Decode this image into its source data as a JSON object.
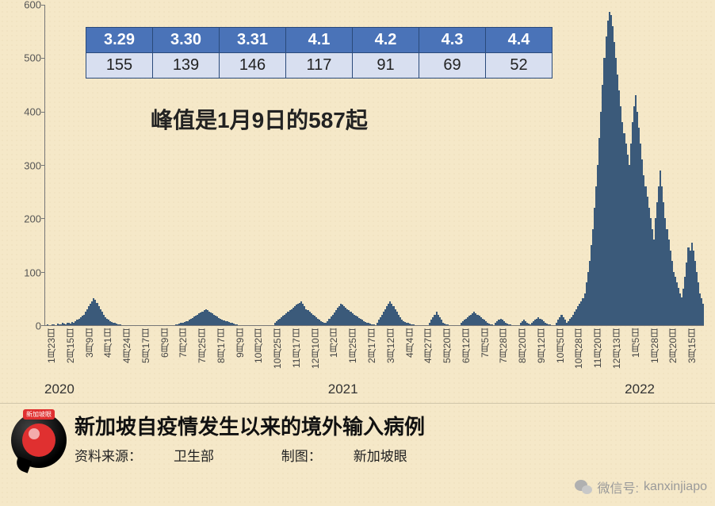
{
  "chart": {
    "type": "bar",
    "ylim": [
      0,
      600
    ],
    "yticks": [
      0,
      100,
      200,
      300,
      400,
      500,
      600
    ],
    "bar_color": "#3b5a7a",
    "axis_color": "#777777",
    "x_labels": [
      "1月23日",
      "2月15日",
      "3月9日",
      "4月1日",
      "4月24日",
      "5月17日",
      "6月9日",
      "7月2日",
      "7月25日",
      "8月17日",
      "9月9日",
      "10月2日",
      "10月25日",
      "11月17日",
      "12月10日",
      "1月2日",
      "1月25日",
      "2月17日",
      "3月12日",
      "4月4日",
      "4月27日",
      "5月20日",
      "6月12日",
      "7月5日",
      "7月28日",
      "8月20日",
      "9月12日",
      "10月5日",
      "10月28日",
      "11月20日",
      "12月13日",
      "1月5日",
      "1月28日",
      "2月20日",
      "3月15日"
    ],
    "year_markers": [
      {
        "label": "2020",
        "pos_pct": 0
      },
      {
        "label": "2021",
        "pos_pct": 43
      },
      {
        "label": "2022",
        "pos_pct": 88
      }
    ],
    "series": [
      0,
      1,
      0,
      0,
      2,
      1,
      0,
      3,
      2,
      1,
      4,
      3,
      2,
      5,
      4,
      3,
      6,
      5,
      8,
      10,
      12,
      15,
      18,
      20,
      25,
      30,
      35,
      40,
      45,
      50,
      48,
      42,
      35,
      30,
      25,
      20,
      15,
      12,
      10,
      8,
      6,
      5,
      4,
      3,
      2,
      1,
      0,
      0,
      0,
      0,
      0,
      0,
      0,
      0,
      0,
      0,
      0,
      0,
      0,
      0,
      0,
      0,
      0,
      0,
      0,
      0,
      0,
      0,
      0,
      0,
      0,
      0,
      0,
      0,
      0,
      0,
      0,
      0,
      0,
      1,
      2,
      3,
      4,
      5,
      6,
      7,
      8,
      10,
      12,
      14,
      16,
      18,
      20,
      22,
      24,
      26,
      28,
      30,
      28,
      26,
      24,
      22,
      20,
      18,
      16,
      14,
      12,
      10,
      9,
      8,
      7,
      6,
      5,
      4,
      3,
      2,
      1,
      0,
      0,
      0,
      0,
      0,
      0,
      0,
      0,
      0,
      0,
      0,
      0,
      0,
      0,
      0,
      0,
      0,
      0,
      0,
      0,
      0,
      0,
      5,
      8,
      10,
      12,
      15,
      18,
      20,
      22,
      25,
      28,
      30,
      32,
      35,
      38,
      40,
      42,
      45,
      40,
      35,
      30,
      28,
      25,
      22,
      20,
      18,
      15,
      12,
      10,
      8,
      6,
      5,
      4,
      8,
      12,
      16,
      20,
      24,
      28,
      32,
      36,
      40,
      38,
      35,
      32,
      30,
      28,
      25,
      22,
      20,
      18,
      16,
      14,
      12,
      10,
      8,
      6,
      5,
      4,
      3,
      2,
      1,
      0,
      5,
      10,
      15,
      20,
      25,
      30,
      35,
      40,
      45,
      40,
      35,
      30,
      25,
      20,
      15,
      10,
      8,
      6,
      5,
      4,
      3,
      2,
      1,
      0,
      0,
      0,
      0,
      0,
      0,
      0,
      0,
      0,
      5,
      10,
      15,
      20,
      25,
      20,
      15,
      10,
      5,
      3,
      2,
      1,
      0,
      0,
      0,
      0,
      0,
      0,
      0,
      5,
      8,
      10,
      12,
      15,
      18,
      20,
      22,
      25,
      22,
      20,
      18,
      15,
      12,
      10,
      8,
      5,
      3,
      2,
      1,
      0,
      5,
      8,
      10,
      12,
      10,
      8,
      5,
      3,
      2,
      1,
      0,
      0,
      0,
      0,
      0,
      5,
      8,
      10,
      8,
      5,
      3,
      2,
      5,
      8,
      10,
      12,
      15,
      12,
      10,
      8,
      5,
      3,
      2,
      1,
      0,
      0,
      0,
      5,
      10,
      15,
      20,
      15,
      10,
      5,
      8,
      12,
      15,
      20,
      25,
      30,
      35,
      40,
      45,
      50,
      60,
      80,
      100,
      120,
      150,
      180,
      220,
      260,
      300,
      350,
      400,
      450,
      500,
      540,
      570,
      587,
      580,
      560,
      530,
      500,
      470,
      440,
      410,
      380,
      360,
      340,
      320,
      300,
      340,
      380,
      410,
      430,
      400,
      370,
      340,
      310,
      280,
      260,
      240,
      220,
      200,
      180,
      160,
      200,
      230,
      260,
      290,
      260,
      230,
      200,
      180,
      160,
      140,
      120,
      100,
      90,
      80,
      70,
      60,
      52,
      69,
      91,
      117,
      146,
      139,
      155,
      140,
      120,
      100,
      80,
      60,
      50,
      40
    ]
  },
  "table": {
    "header_bg": "#4a73b8",
    "header_fg": "#ffffff",
    "cell_bg": "#d8dff0",
    "border": "#2a4a7a",
    "dates": [
      "3.29",
      "3.30",
      "3.31",
      "4.1",
      "4.2",
      "4.3",
      "4.4"
    ],
    "values": [
      "155",
      "139",
      "146",
      "117",
      "91",
      "69",
      "52"
    ]
  },
  "annotations": {
    "peak_text": "峰值是1月9日的587起"
  },
  "footer": {
    "logo_label": "新加坡眼",
    "title": "新加坡自疫情发生以来的境外输入病例",
    "source_label": "资料来源：",
    "source_value": "卫生部",
    "credit_label": "制图：",
    "credit_value": "新加坡眼",
    "wechat_label": "微信号:",
    "wechat_id": "kanxinjiapo"
  },
  "colors": {
    "background": "#f5e8c8",
    "text": "#222222"
  }
}
